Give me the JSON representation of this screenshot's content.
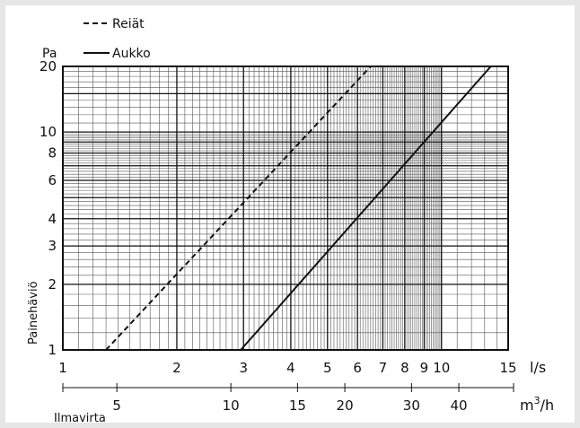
{
  "chart_data": {
    "type": "line",
    "x_scale": "log",
    "y_scale": "log",
    "xlim": [
      1,
      15
    ],
    "ylim": [
      1,
      20
    ],
    "grid": true,
    "legend_position": "top-left",
    "y_unit_label": "Pa",
    "ylabel": "Painehäviö",
    "xlabel": "Ilmavirta",
    "x_unit_primary": "l/s",
    "x_unit_secondary": "m3/h",
    "x_unit_secondary_base": "m",
    "x_unit_secondary_exp": "3",
    "x_unit_secondary_tail": "/h",
    "x_ticks": [
      "1",
      "2",
      "3",
      "4",
      "5",
      "6",
      "7",
      "8",
      "9",
      "10",
      "15"
    ],
    "y_ticks": [
      "1",
      "2",
      "3",
      "4",
      "6",
      "8",
      "10",
      "20"
    ],
    "x2_ticks": [
      "5",
      "10",
      "15",
      "20",
      "30",
      "40"
    ],
    "series": [
      {
        "name": "Reiät",
        "style": "dashed",
        "color": "#111111",
        "points": [
          [
            1.3,
            1
          ],
          [
            6.5,
            20
          ]
        ]
      },
      {
        "name": "Aukko",
        "style": "solid",
        "color": "#111111",
        "points": [
          [
            2.95,
            1
          ],
          [
            13.5,
            20
          ]
        ]
      }
    ]
  }
}
